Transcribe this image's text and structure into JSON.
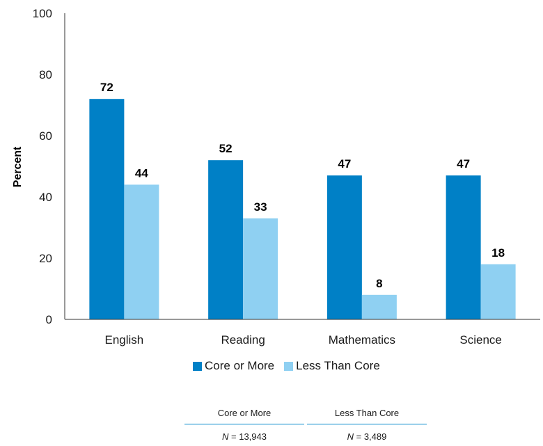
{
  "chart_data": {
    "type": "bar",
    "categories": [
      "English",
      "Reading",
      "Mathematics",
      "Science"
    ],
    "series": [
      {
        "name": "Core or More",
        "values": [
          72,
          52,
          47,
          47
        ],
        "color": "#0080c6"
      },
      {
        "name": "Less Than Core",
        "values": [
          44,
          33,
          8,
          18
        ],
        "color": "#8fd0f2"
      }
    ],
    "title": "",
    "xlabel": "",
    "ylabel": "Percent",
    "ylim": [
      0,
      100
    ],
    "yticks": [
      0,
      20,
      40,
      60,
      80,
      100
    ],
    "grid": false,
    "legend": "bottom-center"
  },
  "sample_table": {
    "columns": [
      {
        "header": "Core or More",
        "n_label": "N",
        "n_value": "13,943"
      },
      {
        "header": "Less Than Core",
        "n_label": "N",
        "n_value": "3,489"
      }
    ]
  }
}
